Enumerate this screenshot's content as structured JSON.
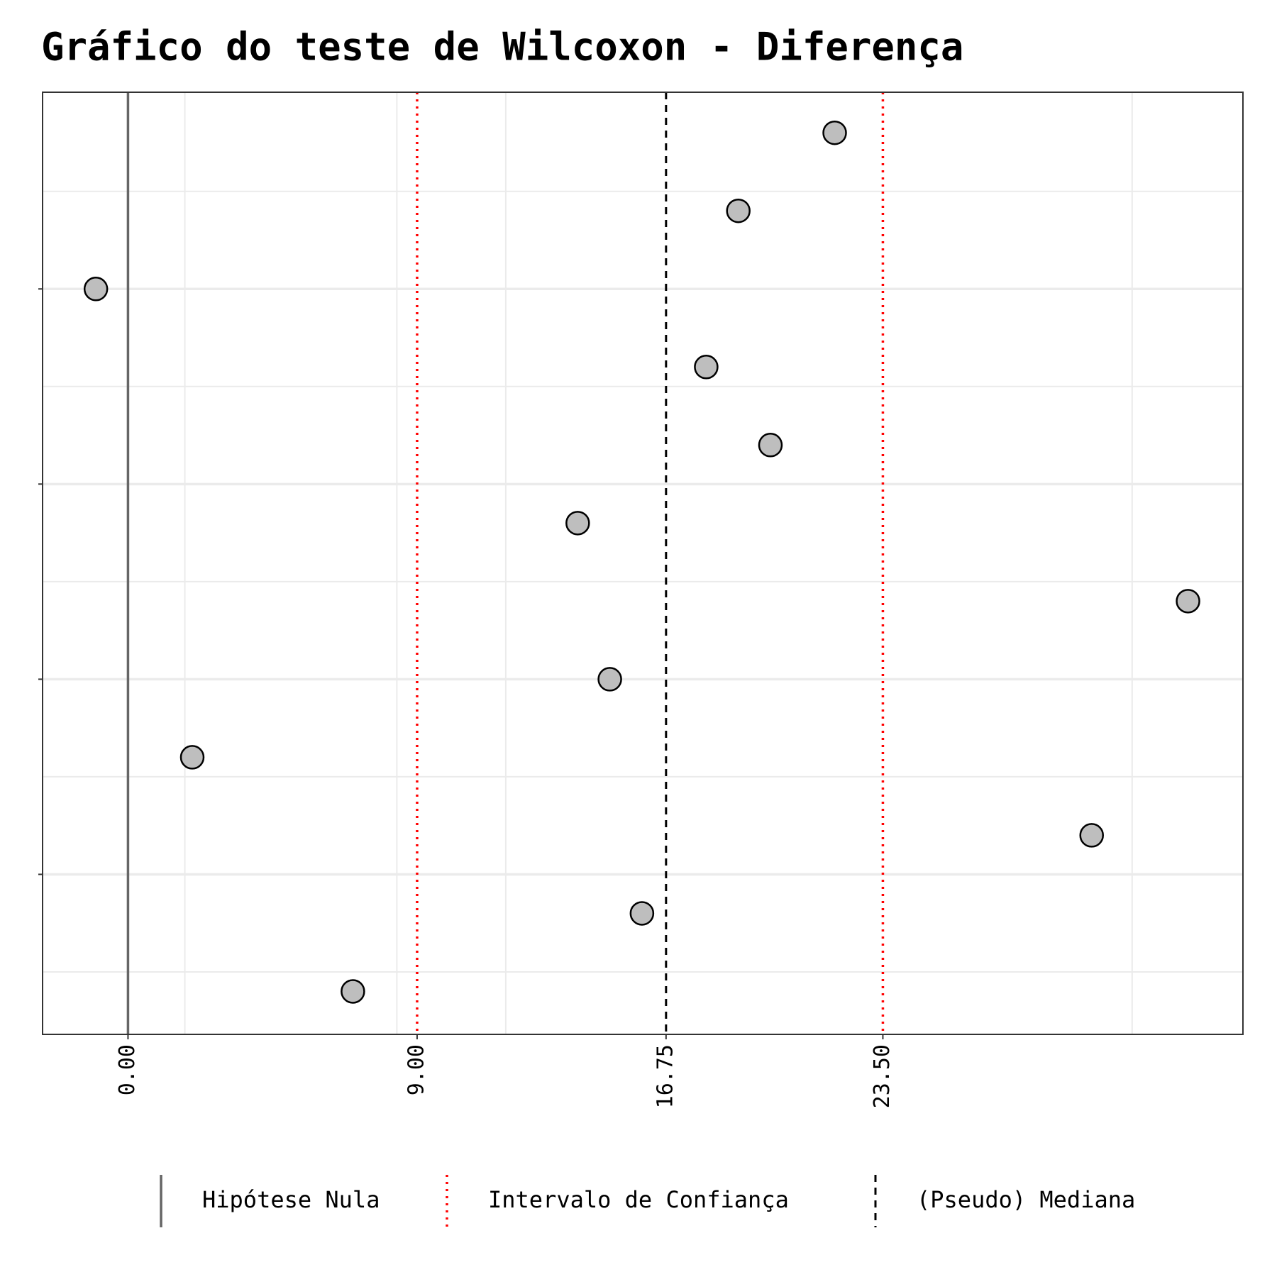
{
  "chart_data": {
    "type": "scatter",
    "title": "Gráfico do teste de Wilcoxon - Diferença",
    "x": [
      22,
      19,
      -1,
      18,
      20,
      14,
      33,
      15,
      2,
      30,
      16,
      7
    ],
    "y": [
      12,
      11,
      10,
      9,
      8,
      7,
      6,
      5,
      4,
      3,
      2,
      1
    ],
    "color": "#bebebe",
    "xlim": [
      -2.66,
      34.71
    ],
    "ylim": [
      0.45,
      12.52
    ],
    "xticks": [
      {
        "value": 0,
        "label": "0.00"
      },
      {
        "value": 9,
        "label": "9.00"
      },
      {
        "value": 16.75,
        "label": "16.75"
      },
      {
        "value": 23.5,
        "label": "23.50"
      }
    ],
    "xgrid": [
      1.77,
      8.37,
      11.76,
      31.26
    ],
    "yticks": [
      2.5,
      5,
      7.5,
      10
    ],
    "yminor": [
      1.25,
      3.75,
      6.25,
      8.75,
      11.25
    ],
    "grid": true,
    "reference_lines": [
      {
        "name": "Hipótese Nula",
        "value": 0,
        "color": "#666666",
        "dash": "solid"
      },
      {
        "name": "Intervalo de Confiança",
        "value": 9,
        "color": "#ff0000",
        "dash": "dotted"
      },
      {
        "name": "Intervalo de Confiança",
        "value": 23.5,
        "color": "#ff0000",
        "dash": "dotted"
      },
      {
        "name": "(Pseudo) Mediana",
        "value": 16.75,
        "color": "#000000",
        "dash": "dashed"
      }
    ],
    "legend": [
      "Hipótese Nula",
      "Intervalo de Confiança",
      "(Pseudo) Mediana"
    ],
    "legend_position": "bottom"
  }
}
